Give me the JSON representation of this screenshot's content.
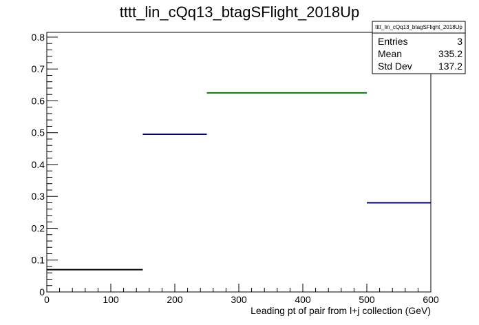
{
  "chart_data": {
    "type": "histogram",
    "title": "tttt_lin_cQq13_btagSFlight_2018Up",
    "xlabel": "Leading pt of pair from l+j collection (GeV)",
    "ylabel": "",
    "xlim": [
      0,
      600
    ],
    "ylim": [
      0,
      0.815
    ],
    "x_ticks": [
      0,
      100,
      200,
      300,
      400,
      500,
      600
    ],
    "y_ticks": [
      0,
      0.1,
      0.2,
      0.3,
      0.4,
      0.5,
      0.6,
      0.7,
      0.8
    ],
    "x_tick_labels": [
      "0",
      "100",
      "200",
      "300",
      "400",
      "500",
      "600"
    ],
    "y_tick_labels": [
      "0",
      "0.1",
      "0.2",
      "0.3",
      "0.4",
      "0.5",
      "0.6",
      "0.7",
      "0.8"
    ],
    "grid": false,
    "bins": [
      {
        "x_low": 0,
        "x_high": 150,
        "value": 0.07,
        "color": "#000000"
      },
      {
        "x_low": 150,
        "x_high": 250,
        "value": 0.495,
        "color": "#000080"
      },
      {
        "x_low": 250,
        "x_high": 500,
        "value": 0.625,
        "color": "#008000"
      },
      {
        "x_low": 500,
        "x_high": 600,
        "value": 0.28,
        "color": "#000080"
      }
    ],
    "stats_box": {
      "position": "top-right",
      "title": "tttt_lin_cQq13_btagSFlight_2018Up",
      "rows": [
        {
          "label": "Entries",
          "value": "3"
        },
        {
          "label": "Mean",
          "value": "335.2"
        },
        {
          "label": "Std Dev",
          "value": "137.2"
        }
      ]
    }
  }
}
